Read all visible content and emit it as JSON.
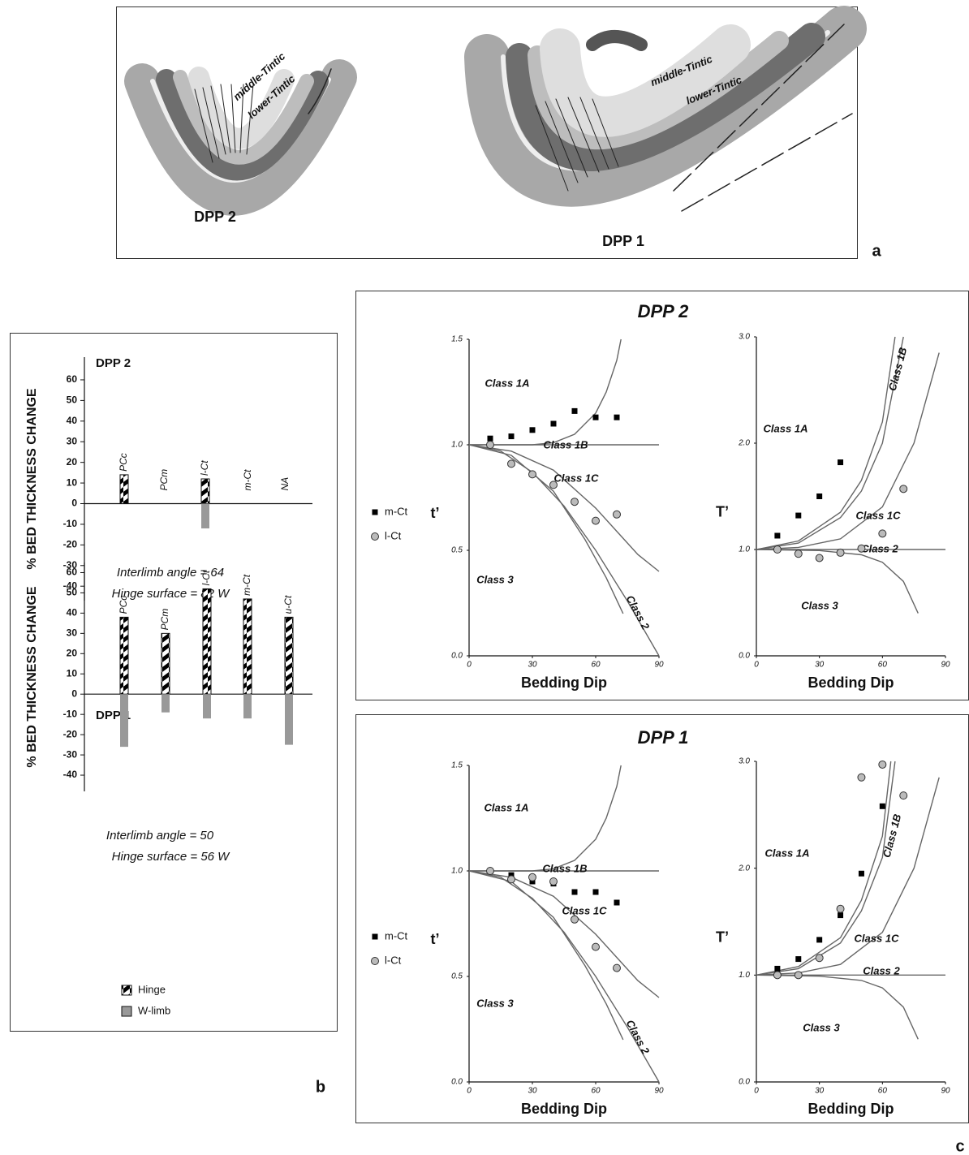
{
  "figure": {
    "panel_labels": [
      "a",
      "b",
      "c"
    ],
    "diagram": {
      "labels": [
        "middle-Tintic",
        "lower-Tintic",
        "middle-Tintic",
        "lower-Tintic"
      ],
      "fold_names": [
        "DPP 2",
        "DPP 1"
      ]
    }
  },
  "chart_data": [
    {
      "type": "bar",
      "title": "DPP 2",
      "ylabel": "% BED THICKNESS CHANGE",
      "categories": [
        "PCc",
        "PCm",
        "l-Ct",
        "m-Ct",
        "NA"
      ],
      "series": [
        {
          "color": "#000000",
          "values": [
            14,
            null,
            12,
            null,
            null
          ]
        },
        {
          "color": "#999999",
          "values": [
            null,
            null,
            -12,
            null,
            null
          ]
        }
      ],
      "ylim": [
        -47,
        71
      ],
      "yticks": [
        -40,
        -30,
        -20,
        -10,
        0,
        10,
        20,
        30,
        40,
        50,
        60
      ],
      "annotations": [
        "Interlimb angle = 64",
        "Hinge surface = 82 W"
      ]
    },
    {
      "type": "bar",
      "title": "DPP 1",
      "ylabel": "% BED THICKNESS CHANGE",
      "categories": [
        "PCc",
        "PCm",
        "l-Ct",
        "m-Ct",
        "u-Ct"
      ],
      "series": [
        {
          "name": "Hinge",
          "color": "#000000",
          "values": [
            38,
            30,
            52,
            47,
            38
          ]
        },
        {
          "name": "W-limb",
          "color": "#999999",
          "values": [
            -26,
            -9,
            -12,
            -12,
            -25
          ]
        }
      ],
      "ylim": [
        -48,
        65
      ],
      "yticks": [
        -40,
        -30,
        -20,
        -10,
        0,
        10,
        20,
        30,
        40,
        50,
        60
      ],
      "annotations": [
        "Interlimb angle = 50",
        "Hinge surface = 56 W"
      ]
    },
    {
      "type": "scatter",
      "title": "DPP 2",
      "xlabel": "Bedding Dip",
      "ylabel": "t’",
      "xlim": [
        0,
        90
      ],
      "xticks": [
        0,
        30,
        60,
        90
      ],
      "ylim": [
        0,
        1.5
      ],
      "yticks": [
        {
          "value": 0,
          "label": "0.0"
        },
        0.5,
        {
          "value": 1,
          "label": "1.0"
        },
        1.5
      ],
      "series": [
        {
          "name": "m-Ct",
          "color": "#000000",
          "marker": "square",
          "x": [
            10,
            20,
            30,
            40,
            50,
            60,
            70
          ],
          "values": [
            1.03,
            1.04,
            1.07,
            1.1,
            1.16,
            1.13,
            1.13
          ]
        },
        {
          "name": "l-Ct",
          "color": "#bbbbbb",
          "marker": "circle",
          "x": [
            10,
            20,
            30,
            40,
            50,
            60,
            70
          ],
          "values": [
            1.0,
            0.91,
            0.86,
            0.81,
            0.73,
            0.64,
            0.67
          ]
        }
      ],
      "curves": [
        {
          "color": "#666666",
          "x": [
            0,
            30,
            40,
            50,
            60,
            65,
            70,
            72
          ],
          "values": [
            1,
            1,
            1.01,
            1.05,
            1.15,
            1.25,
            1.4,
            1.5
          ]
        },
        {
          "color": "#666666",
          "x": [
            0,
            90
          ],
          "values": [
            1,
            1
          ]
        },
        {
          "color": "#666666",
          "x": [
            0,
            20,
            40,
            60,
            80,
            90
          ],
          "values": [
            1,
            0.97,
            0.88,
            0.7,
            0.48,
            0.4
          ]
        },
        {
          "color": "#666666",
          "x": [
            0,
            15,
            30,
            45,
            60,
            75,
            90
          ],
          "values": [
            1,
            0.97,
            0.87,
            0.71,
            0.5,
            0.26,
            0
          ]
        },
        {
          "color": "#666666",
          "x": [
            0,
            20,
            40,
            55,
            65,
            73
          ],
          "values": [
            1,
            0.95,
            0.78,
            0.55,
            0.37,
            0.2
          ]
        }
      ],
      "annotations": [
        "Class 1A",
        "Class 1B",
        "Class 1C",
        "Class 3",
        "Class 2"
      ]
    },
    {
      "type": "scatter",
      "xlabel": "Bedding Dip",
      "ylabel": "T’",
      "xlim": [
        0,
        90
      ],
      "xticks": [
        0,
        30,
        60,
        90
      ],
      "ylim": [
        0,
        3
      ],
      "yticks": [
        {
          "value": 0,
          "label": "0.0"
        },
        {
          "value": 1,
          "label": "1.0"
        },
        {
          "value": 2,
          "label": "2.0"
        },
        {
          "value": 3,
          "label": "3.0"
        }
      ],
      "series": [
        {
          "color": "#000000",
          "marker": "square",
          "x": [
            10,
            20,
            30,
            40
          ],
          "values": [
            1.13,
            1.32,
            1.5,
            1.82
          ]
        },
        {
          "color": "#bbbbbb",
          "marker": "circle",
          "x": [
            10,
            20,
            30,
            40,
            50,
            60,
            70
          ],
          "values": [
            1.0,
            0.96,
            0.92,
            0.97,
            1.01,
            1.15,
            1.57
          ]
        }
      ],
      "curves": [
        {
          "color": "#666666",
          "x": [
            0,
            20,
            40,
            50,
            60,
            66
          ],
          "values": [
            1,
            1.08,
            1.35,
            1.65,
            2.2,
            3.0
          ]
        },
        {
          "color": "#666666",
          "x": [
            0,
            20,
            40,
            50,
            60,
            70
          ],
          "values": [
            1,
            1.06,
            1.3,
            1.55,
            2.0,
            3.0
          ]
        },
        {
          "color": "#666666",
          "x": [
            0,
            20,
            40,
            60,
            75,
            87
          ],
          "values": [
            1,
            1.02,
            1.1,
            1.4,
            2.0,
            2.85
          ]
        },
        {
          "color": "#666666",
          "x": [
            0,
            90
          ],
          "values": [
            1,
            1
          ]
        },
        {
          "color": "#666666",
          "x": [
            0,
            30,
            50,
            60,
            70,
            77
          ],
          "values": [
            1,
            0.99,
            0.95,
            0.88,
            0.7,
            0.4
          ]
        }
      ],
      "annotations": [
        "Class 1A",
        "Class 1B",
        "Class 1C",
        "Class 2",
        "Class 3"
      ]
    },
    {
      "type": "scatter",
      "title": "DPP 1",
      "xlabel": "Bedding Dip",
      "ylabel": "t’",
      "xlim": [
        0,
        90
      ],
      "xticks": [
        0,
        30,
        60,
        90
      ],
      "ylim": [
        0,
        1.5
      ],
      "yticks": [
        {
          "value": 0,
          "label": "0.0"
        },
        0.5,
        {
          "value": 1,
          "label": "1.0"
        },
        1.5
      ],
      "series": [
        {
          "name": "m-Ct",
          "color": "#000000",
          "marker": "square",
          "x": [
            10,
            20,
            30,
            40,
            50,
            60,
            70
          ],
          "values": [
            1.0,
            0.98,
            0.95,
            0.94,
            0.9,
            0.9,
            0.85
          ]
        },
        {
          "name": "l-Ct",
          "color": "#bbbbbb",
          "marker": "circle",
          "x": [
            10,
            20,
            30,
            40,
            50,
            60,
            70
          ],
          "values": [
            1.0,
            0.96,
            0.97,
            0.95,
            0.77,
            0.64,
            0.54
          ]
        }
      ],
      "curves": [
        {
          "color": "#666666",
          "x": [
            0,
            30,
            40,
            50,
            60,
            65,
            70,
            72
          ],
          "values": [
            1,
            1,
            1.01,
            1.05,
            1.15,
            1.25,
            1.4,
            1.5
          ]
        },
        {
          "color": "#666666",
          "x": [
            0,
            90
          ],
          "values": [
            1,
            1
          ]
        },
        {
          "color": "#666666",
          "x": [
            0,
            20,
            40,
            60,
            80,
            90
          ],
          "values": [
            1,
            0.97,
            0.88,
            0.7,
            0.48,
            0.4
          ]
        },
        {
          "color": "#666666",
          "x": [
            0,
            15,
            30,
            45,
            60,
            75,
            90
          ],
          "values": [
            1,
            0.97,
            0.87,
            0.71,
            0.5,
            0.26,
            0
          ]
        },
        {
          "color": "#666666",
          "x": [
            0,
            20,
            40,
            55,
            65,
            73
          ],
          "values": [
            1,
            0.95,
            0.78,
            0.55,
            0.37,
            0.2
          ]
        }
      ],
      "annotations": [
        "Class 1A",
        "Class 1B",
        "Class 1C",
        "Class 3",
        "Class 2"
      ]
    },
    {
      "type": "scatter",
      "xlabel": "Bedding Dip",
      "ylabel": "T’",
      "xlim": [
        0,
        90
      ],
      "xticks": [
        0,
        30,
        60,
        90
      ],
      "ylim": [
        0,
        3
      ],
      "yticks": [
        {
          "value": 0,
          "label": "0.0"
        },
        {
          "value": 1,
          "label": "1.0"
        },
        {
          "value": 2,
          "label": "2.0"
        },
        {
          "value": 3,
          "label": "3.0"
        }
      ],
      "series": [
        {
          "color": "#000000",
          "marker": "square",
          "x": [
            10,
            20,
            30,
            40,
            50,
            60
          ],
          "values": [
            1.06,
            1.15,
            1.33,
            1.56,
            1.95,
            2.58
          ]
        },
        {
          "color": "#bbbbbb",
          "marker": "circle",
          "x": [
            10,
            20,
            30,
            40,
            50,
            60,
            70
          ],
          "values": [
            1.0,
            1.0,
            1.16,
            1.62,
            2.85,
            2.97,
            2.68
          ]
        }
      ],
      "curves": [
        {
          "color": "#666666",
          "x": [
            0,
            20,
            40,
            50,
            60,
            64
          ],
          "values": [
            1,
            1.08,
            1.35,
            1.7,
            2.3,
            3.0
          ]
        },
        {
          "color": "#666666",
          "x": [
            0,
            20,
            40,
            50,
            60,
            66
          ],
          "values": [
            1,
            1.06,
            1.3,
            1.6,
            2.1,
            3.0
          ]
        },
        {
          "color": "#666666",
          "x": [
            0,
            20,
            40,
            60,
            75,
            87
          ],
          "values": [
            1,
            1.02,
            1.1,
            1.4,
            2.0,
            2.85
          ]
        },
        {
          "color": "#666666",
          "x": [
            0,
            90
          ],
          "values": [
            1,
            1
          ]
        },
        {
          "color": "#666666",
          "x": [
            0,
            30,
            50,
            60,
            70,
            77
          ],
          "values": [
            1,
            0.99,
            0.95,
            0.88,
            0.7,
            0.4
          ]
        }
      ],
      "annotations": [
        "Class 1A",
        "Class 1B",
        "Class 1C",
        "Class 2",
        "Class 3"
      ]
    }
  ]
}
